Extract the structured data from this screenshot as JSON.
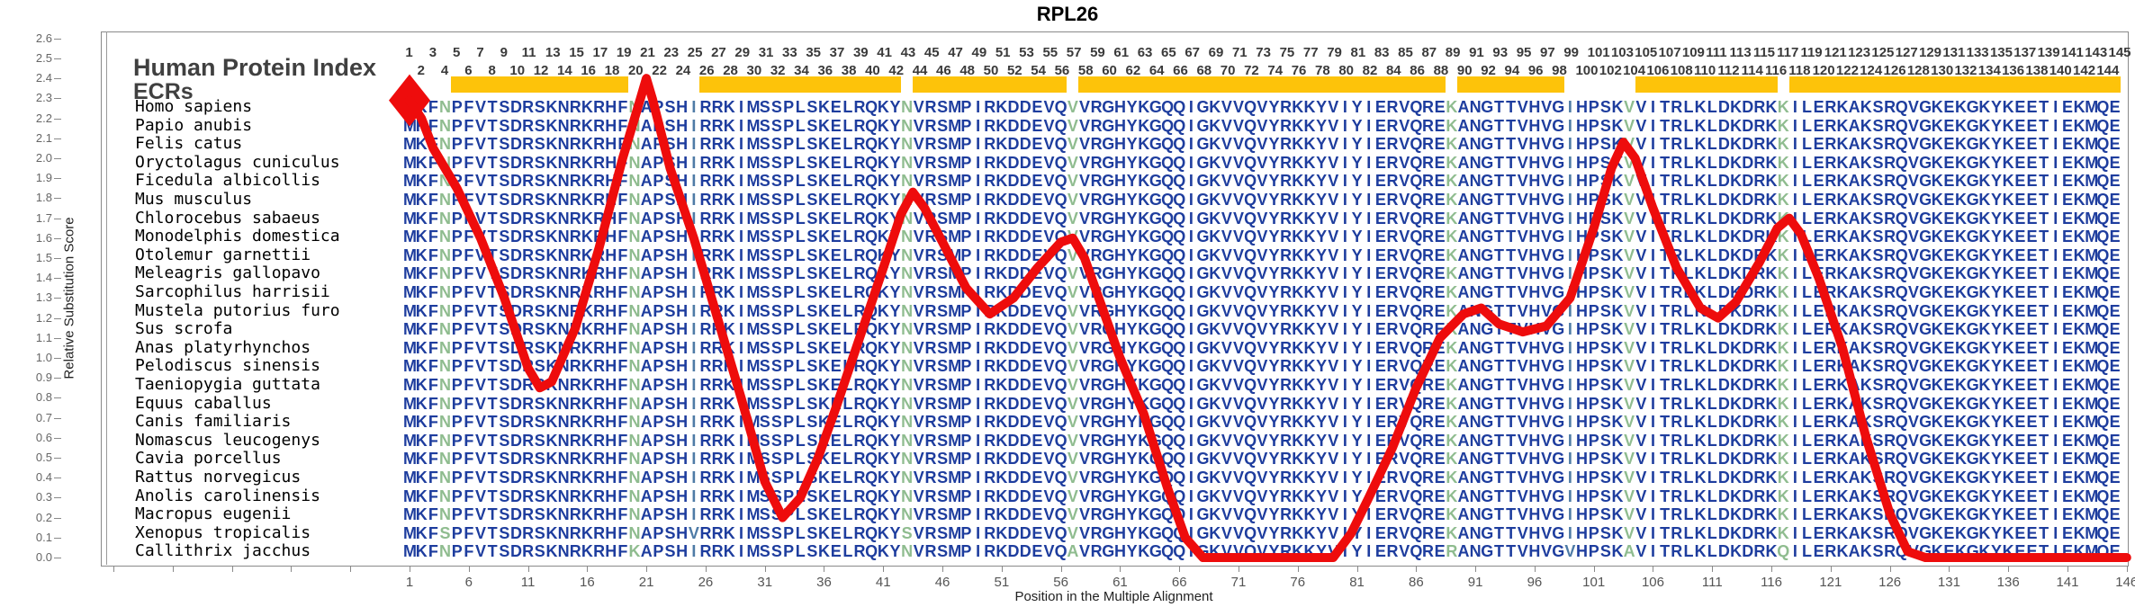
{
  "title": "RPL26",
  "header": {
    "line1": "Human Protein Index",
    "line2": "ECRs"
  },
  "colors": {
    "red": "#ee0c0c",
    "yellow": "#fdc30a",
    "navy": "#1e3d9e",
    "green": "#8fbc8f",
    "slate": "#4e7ba6",
    "frame": "#8a8a8a",
    "number_text": "#3a3a3a",
    "tick_text": "#555555"
  },
  "y_axis": {
    "label": "Relative Substitution Score",
    "ticks": [
      "0.0",
      "0.1",
      "0.2",
      "0.3",
      "0.4",
      "0.5",
      "0.6",
      "0.7",
      "0.8",
      "0.9",
      "1.0",
      "1.1",
      "1.2",
      "1.3",
      "1.4",
      "1.5",
      "1.6",
      "1.7",
      "1.8",
      "1.9",
      "2.0",
      "2.1",
      "2.2",
      "2.3",
      "2.4",
      "2.5",
      "2.6"
    ]
  },
  "x_axis": {
    "label": "Position in the Multiple Alignment",
    "ticks": [
      1,
      6,
      11,
      16,
      21,
      26,
      31,
      36,
      41,
      46,
      51,
      56,
      61,
      66,
      71,
      76,
      81,
      86,
      91,
      96,
      101,
      106,
      111,
      116,
      121,
      126,
      131,
      136,
      141,
      146
    ]
  },
  "top_positions": {
    "odd_row": {
      "start": 1,
      "end": 145
    },
    "even_row": {
      "start": 2,
      "end": 144
    }
  },
  "ecr_regions": [
    [
      5,
      19
    ],
    [
      26,
      42
    ],
    [
      44,
      56
    ],
    [
      58,
      88
    ],
    [
      90,
      98
    ],
    [
      105,
      116
    ],
    [
      118,
      145
    ]
  ],
  "alignment": {
    "length": 145,
    "reference_sequence": "MKFNPFVTSDRSKNRKRHFNAPSHIRRKIMSSPLSKELRQKYNVRSMPIRKDDEVQVVRGHYKGQQIGKVVQVYRKKYVIYIERVQREKANGTTVHVGIHPSKVVITRLKLDKDRKKILERKAKSRQVGKEKGKYKEETIEKMQE",
    "green_columns": [
      4,
      20,
      43,
      57,
      89,
      104,
      117
    ],
    "slate_columns": [
      25,
      99
    ],
    "species": [
      "Homo sapiens",
      "Papio anubis",
      "Felis catus",
      "Oryctolagus cuniculus",
      "Ficedula albicollis",
      "Mus musculus",
      "Chlorocebus sabaeus",
      "Monodelphis domestica",
      "Otolemur garnettii",
      "Meleagris gallopavo",
      "Sarcophilus harrisii",
      "Mustela putorius furo",
      "Sus scrofa",
      "Anas platyrhynchos",
      "Pelodiscus sinensis",
      "Taeniopygia guttata",
      "Equus caballus",
      "Canis familiaris",
      "Nomascus leucogenys",
      "Cavia porcellus",
      "Rattus norvegicus",
      "Anolis carolinensis",
      "Macropus eugenii",
      "Xenopus tropicalis",
      "Callithrix jacchus"
    ],
    "substitutions": {
      "Xenopus tropicalis": {
        "4": "S",
        "25": "V",
        "43": "S"
      },
      "Callithrix jacchus": {
        "20": "K",
        "57": "A",
        "89": "R",
        "99": "V",
        "104": "A",
        "117": "Q"
      }
    }
  },
  "chart_data": {
    "type": "line",
    "title": "RPL26",
    "xlabel": "Position in the Multiple Alignment",
    "ylabel": "Relative Substitution Score",
    "xlim": [
      1,
      146
    ],
    "ylim": [
      0,
      2.6
    ],
    "grid": false,
    "legend": "none",
    "ecr_regions": [
      [
        5,
        19
      ],
      [
        26,
        42
      ],
      [
        44,
        56
      ],
      [
        58,
        88
      ],
      [
        90,
        98
      ],
      [
        105,
        116
      ],
      [
        118,
        145
      ]
    ],
    "series": [
      {
        "name": "Relative Substitution Score",
        "color": "#ee0c0c",
        "marker_start": "diamond",
        "points": [
          [
            1,
            2.29
          ],
          [
            2,
            2.2
          ],
          [
            3,
            2.05
          ],
          [
            5,
            1.85
          ],
          [
            7,
            1.6
          ],
          [
            9,
            1.3
          ],
          [
            11,
            0.95
          ],
          [
            12,
            0.85
          ],
          [
            13,
            0.88
          ],
          [
            15,
            1.15
          ],
          [
            17,
            1.55
          ],
          [
            19,
            2.0
          ],
          [
            20.5,
            2.3
          ],
          [
            21,
            2.4
          ],
          [
            21.5,
            2.3
          ],
          [
            23,
            1.95
          ],
          [
            25,
            1.6
          ],
          [
            27,
            1.2
          ],
          [
            29,
            0.8
          ],
          [
            31,
            0.38
          ],
          [
            32.5,
            0.2
          ],
          [
            34,
            0.3
          ],
          [
            35.5,
            0.5
          ],
          [
            37,
            0.75
          ],
          [
            39,
            1.1
          ],
          [
            41,
            1.45
          ],
          [
            42.5,
            1.72
          ],
          [
            43.5,
            1.83
          ],
          [
            44.5,
            1.75
          ],
          [
            46,
            1.58
          ],
          [
            48,
            1.35
          ],
          [
            50,
            1.22
          ],
          [
            52,
            1.3
          ],
          [
            54,
            1.45
          ],
          [
            56,
            1.58
          ],
          [
            57,
            1.6
          ],
          [
            58,
            1.5
          ],
          [
            59.5,
            1.25
          ],
          [
            61,
            1.0
          ],
          [
            63,
            0.72
          ],
          [
            65,
            0.35
          ],
          [
            66.5,
            0.1
          ],
          [
            68,
            0.0
          ],
          [
            79,
            0.0
          ],
          [
            80.5,
            0.12
          ],
          [
            82,
            0.3
          ],
          [
            84,
            0.55
          ],
          [
            86,
            0.85
          ],
          [
            88,
            1.1
          ],
          [
            90,
            1.22
          ],
          [
            91.5,
            1.25
          ],
          [
            93,
            1.17
          ],
          [
            95,
            1.13
          ],
          [
            97,
            1.16
          ],
          [
            99,
            1.3
          ],
          [
            101,
            1.65
          ],
          [
            102.5,
            1.95
          ],
          [
            103.5,
            2.08
          ],
          [
            104.5,
            2.0
          ],
          [
            106,
            1.75
          ],
          [
            108,
            1.45
          ],
          [
            110,
            1.25
          ],
          [
            111.5,
            1.2
          ],
          [
            113,
            1.28
          ],
          [
            115,
            1.48
          ],
          [
            116.5,
            1.65
          ],
          [
            117.5,
            1.7
          ],
          [
            118.5,
            1.62
          ],
          [
            120,
            1.4
          ],
          [
            122,
            1.05
          ],
          [
            124,
            0.6
          ],
          [
            126,
            0.22
          ],
          [
            127.5,
            0.03
          ],
          [
            129,
            0.0
          ],
          [
            146,
            0.0
          ]
        ]
      }
    ]
  }
}
